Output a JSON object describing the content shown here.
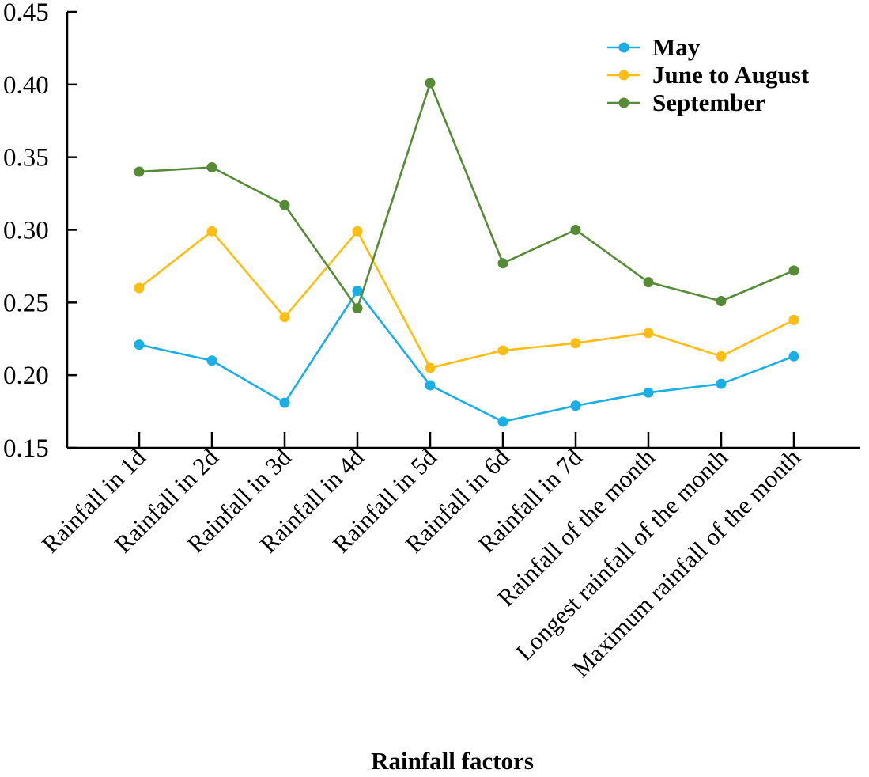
{
  "chart_data": {
    "type": "line",
    "title": "",
    "xlabel": "Rainfall factors",
    "ylabel": "",
    "ylim": [
      0.15,
      0.45
    ],
    "yticks": [
      "0.15",
      "0.20",
      "0.25",
      "0.30",
      "0.35",
      "0.40",
      "0.45"
    ],
    "grid": false,
    "legend_position": "top-right",
    "categories": [
      "Rainfall in 1d",
      "Rainfall in 2d",
      "Rainfall in 3d",
      "Rainfall in 4d",
      "Rainfall in 5d",
      "Rainfall in 6d",
      "Rainfall in 7d",
      "Rainfall of the month",
      "Longest rainfall of the month",
      "Maximum rainfall of the month"
    ],
    "series": [
      {
        "name": "May",
        "color": "#1aaee6",
        "values": [
          0.221,
          0.21,
          0.181,
          0.258,
          0.193,
          0.168,
          0.179,
          0.188,
          0.194,
          0.213
        ]
      },
      {
        "name": "June to August",
        "color": "#fdbd12",
        "values": [
          0.26,
          0.299,
          0.24,
          0.299,
          0.205,
          0.217,
          0.222,
          0.229,
          0.213,
          0.238
        ]
      },
      {
        "name": "September",
        "color": "#558b35",
        "values": [
          0.34,
          0.343,
          0.317,
          0.246,
          0.401,
          0.277,
          0.3,
          0.264,
          0.251,
          0.272
        ]
      }
    ]
  }
}
